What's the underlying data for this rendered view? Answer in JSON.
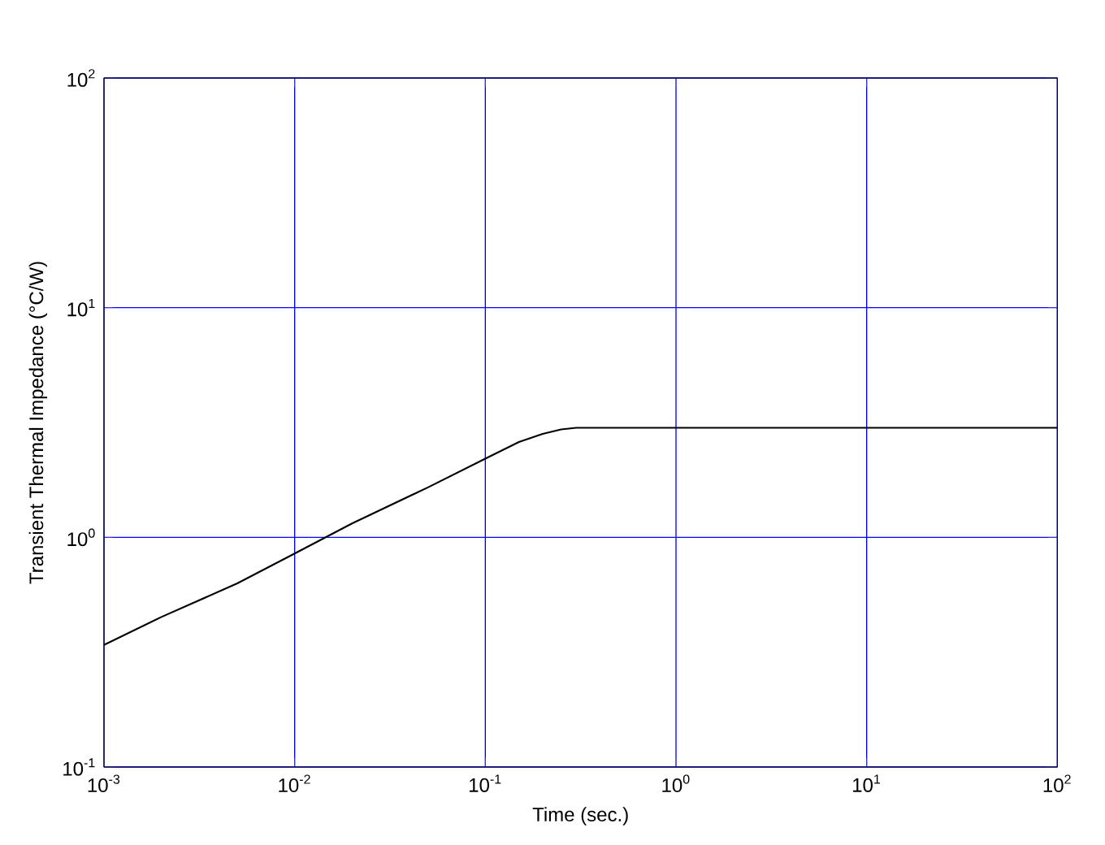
{
  "chart_data": {
    "type": "line",
    "xlabel": "Time     (sec.)",
    "ylabel": "Transient Thermal Impedance     (°C/W)",
    "series": [
      {
        "color": "#000000",
        "x": [
          0.001,
          0.002,
          0.005,
          0.01,
          0.02,
          0.05,
          0.1,
          0.15,
          0.2,
          0.25,
          0.3,
          0.4,
          1,
          10,
          100
        ],
        "values": [
          0.34,
          0.45,
          0.63,
          0.85,
          1.15,
          1.65,
          2.2,
          2.6,
          2.82,
          2.95,
          3.0,
          3.0,
          3.0,
          3.0,
          3.0
        ]
      }
    ],
    "log": "xy",
    "grid": true,
    "xlim": [
      0.001,
      100
    ],
    "ylim": [
      0.1,
      100
    ],
    "xticks": [
      {
        "value": 0.001,
        "label": "10$^{-3}$"
      },
      {
        "value": 0.01,
        "label": "10$^{-2}$"
      },
      {
        "value": 0.1,
        "label": "10$^{-1}$"
      },
      {
        "value": 1,
        "label": "10$^{0}$"
      },
      {
        "value": 10,
        "label": "10$^{1}$"
      },
      {
        "value": 100,
        "label": "10$^{2}$"
      }
    ],
    "yticks": [
      {
        "value": 0.1,
        "label": "10$^{-1}$"
      },
      {
        "value": 1,
        "label": "10$^{0}$"
      },
      {
        "value": 10,
        "label": "10$^{1}$"
      },
      {
        "value": 100,
        "label": "10$^{2}$"
      }
    ]
  }
}
